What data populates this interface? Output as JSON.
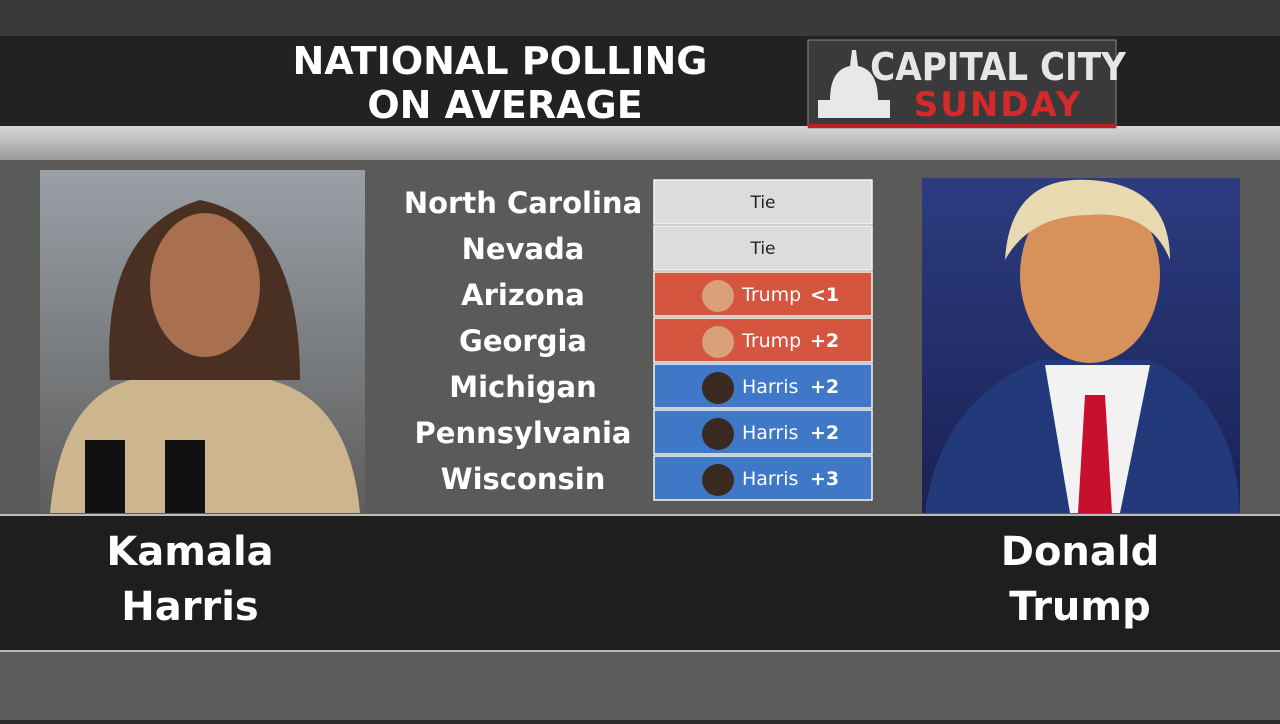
{
  "header": {
    "title": [
      "NATIONAL POLLING",
      "ON AVERAGE"
    ],
    "logo": {
      "top": "CAPITAL CITY",
      "bottom": "SUNDAY"
    }
  },
  "table": {
    "rows": [
      {
        "state": "North Carolina",
        "result": "Tie",
        "color": "#dcdcdc"
      },
      {
        "state": "Nevada",
        "result": "Tie",
        "color": "#dcdcdc"
      },
      {
        "state": "Arizona",
        "candidate": "Trump",
        "margin": "<1",
        "color": "#d6553f"
      },
      {
        "state": "Georgia",
        "candidate": "Trump",
        "margin": "+2",
        "color": "#d6553f"
      },
      {
        "state": "Michigan",
        "candidate": "Harris",
        "margin": "+2",
        "color": "#3f78c6"
      },
      {
        "state": "Pennsylvania",
        "candidate": "Harris",
        "margin": "+2",
        "color": "#3f78c6"
      },
      {
        "state": "Wisconsin",
        "candidate": "Harris",
        "margin": "+3",
        "color": "#3f78c6"
      }
    ]
  },
  "candidates": {
    "left": [
      "Kamala",
      "Harris"
    ],
    "right": [
      "Donald",
      "Trump"
    ]
  }
}
